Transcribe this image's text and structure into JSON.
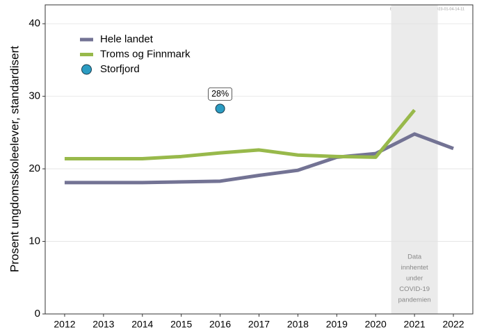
{
  "chart_data": {
    "type": "line",
    "watermark": "ENSOMHET_UNGDATA_2023-01-04-14-11",
    "ylabel": "Prosent ungdomsskoleelever, standardisert",
    "x": [
      2012,
      2013,
      2014,
      2015,
      2016,
      2017,
      2018,
      2019,
      2020,
      2021,
      2022
    ],
    "series": [
      {
        "name": "Hele landet",
        "color": "#737394",
        "mode": "lines",
        "values": [
          18.1,
          18.1,
          18.1,
          18.2,
          18.3,
          19.1,
          19.8,
          21.6,
          22.1,
          24.8,
          22.8
        ]
      },
      {
        "name": "Troms og Finnmark",
        "color": "#98b94b",
        "mode": "lines",
        "values": [
          21.4,
          21.4,
          21.4,
          21.7,
          22.2,
          22.6,
          21.9,
          21.7,
          21.6,
          28.1,
          null
        ]
      },
      {
        "name": "Storfjord",
        "color": "#2b9cc2",
        "mode": "markers",
        "values": [
          null,
          null,
          null,
          null,
          28.3,
          null,
          null,
          null,
          null,
          null,
          null
        ],
        "value_labels": [
          null,
          null,
          null,
          null,
          "28%",
          null,
          null,
          null,
          null,
          null,
          null
        ]
      }
    ],
    "shade": {
      "range": [
        2020.4,
        2021.6
      ],
      "lines": [
        "Data",
        "innhentet",
        "under",
        "COVID-19",
        "pandemien"
      ]
    },
    "xlim": [
      2011.5,
      2022.5
    ],
    "xticks": [
      2012,
      2013,
      2014,
      2015,
      2016,
      2017,
      2018,
      2019,
      2020,
      2021,
      2022
    ],
    "ylim": [
      0,
      42.6
    ],
    "yticks": [
      0,
      10,
      20,
      30,
      40
    ],
    "grid": true,
    "legend": "top-left"
  }
}
